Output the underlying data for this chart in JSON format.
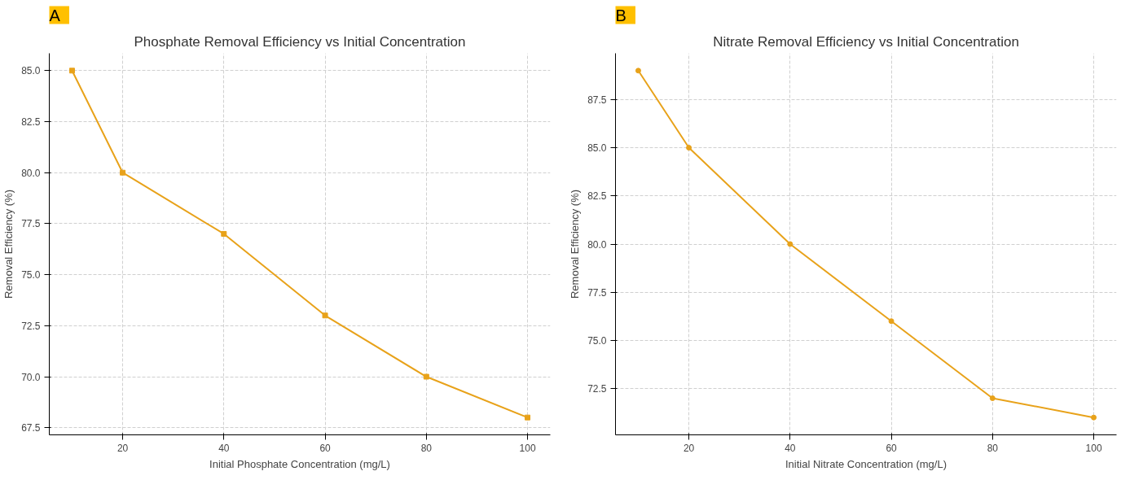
{
  "chart_data": [
    {
      "type": "line",
      "title": "Phosphate Removal Efficiency vs Initial Concentration",
      "xlabel": "Initial Phosphate Concentration (mg/L)",
      "ylabel": "Removal Efficiency (%)",
      "annotations": [
        "A"
      ],
      "x": [
        10,
        20,
        40,
        60,
        80,
        100
      ],
      "series": [
        {
          "color": "#e8a21a",
          "values": [
            85,
            80,
            77,
            73,
            70,
            68
          ]
        }
      ],
      "xlim": [
        5.5,
        104.5
      ],
      "ylim": [
        67.15,
        85.85
      ],
      "xticks": [
        20,
        40,
        60,
        80,
        100
      ],
      "yticks": [
        {
          "value": 67.5,
          "label": "67.5"
        },
        {
          "value": 70,
          "label": "70.0"
        },
        {
          "value": 72.5,
          "label": "72.5"
        },
        {
          "value": 75,
          "label": "75.0"
        },
        {
          "value": 77.5,
          "label": "77.5"
        },
        {
          "value": 80,
          "label": "80.0"
        },
        {
          "value": 82.5,
          "label": "82.5"
        },
        {
          "value": 85,
          "label": "85.0"
        }
      ],
      "grid": true,
      "marker": "square",
      "line_style": "solid"
    },
    {
      "type": "line",
      "title": "Nitrate Removal Efficiency vs Initial Concentration",
      "xlabel": "Initial Nitrate Concentration (mg/L)",
      "ylabel": "Removal Efficiency (%)",
      "annotations": [
        "B"
      ],
      "x": [
        10,
        20,
        40,
        60,
        80,
        100
      ],
      "series": [
        {
          "color": "#e8a21a",
          "values": [
            89,
            85,
            80,
            76,
            72,
            71
          ]
        }
      ],
      "xlim": [
        5.5,
        104.5
      ],
      "ylim": [
        70.1,
        89.9
      ],
      "xticks": [
        20,
        40,
        60,
        80,
        100
      ],
      "yticks": [
        {
          "value": 72.5,
          "label": "72.5"
        },
        {
          "value": 75,
          "label": "75.0"
        },
        {
          "value": 77.5,
          "label": "77.5"
        },
        {
          "value": 80,
          "label": "80.0"
        },
        {
          "value": 82.5,
          "label": "82.5"
        },
        {
          "value": 85,
          "label": "85.0"
        },
        {
          "value": 87.5,
          "label": "87.5"
        }
      ],
      "grid": true,
      "marker": "circle",
      "line_style": "solid"
    }
  ]
}
